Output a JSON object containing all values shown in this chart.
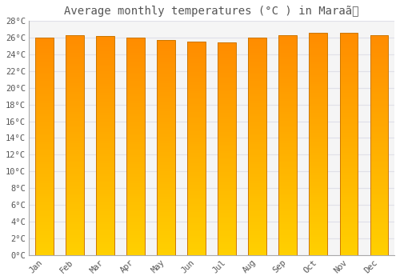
{
  "title": "Average monthly temperatures (°C ) in Maraã",
  "months": [
    "Jan",
    "Feb",
    "Mar",
    "Apr",
    "May",
    "Jun",
    "Jul",
    "Aug",
    "Sep",
    "Oct",
    "Nov",
    "Dec"
  ],
  "temperatures": [
    26.0,
    26.3,
    26.2,
    26.0,
    25.7,
    25.5,
    25.4,
    26.0,
    26.3,
    26.6,
    26.6,
    26.3
  ],
  "bar_color_bottom": "#FFB800",
  "bar_color_top": "#FF8C00",
  "bar_edge_color": "#CC7700",
  "ylim": [
    0,
    28
  ],
  "yticks": [
    0,
    2,
    4,
    6,
    8,
    10,
    12,
    14,
    16,
    18,
    20,
    22,
    24,
    26,
    28
  ],
  "ytick_labels": [
    "0°C",
    "2°C",
    "4°C",
    "6°C",
    "8°C",
    "10°C",
    "12°C",
    "14°C",
    "16°C",
    "18°C",
    "20°C",
    "22°C",
    "24°C",
    "26°C",
    "28°C"
  ],
  "background_color": "#ffffff",
  "plot_bg_color": "#f5f5f5",
  "grid_color": "#e0e0e8",
  "title_fontsize": 10,
  "tick_fontsize": 7.5,
  "font_color": "#555555",
  "bar_width": 0.6
}
